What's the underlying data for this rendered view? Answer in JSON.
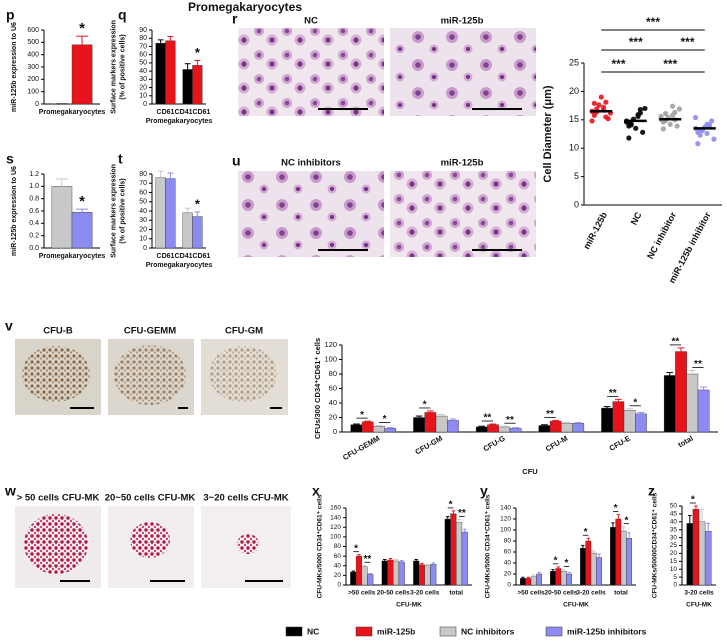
{
  "title": "Promegakaryocytes",
  "image_panels": [
    {
      "label": "r",
      "captions": [
        "NC",
        "miR-125b"
      ]
    },
    {
      "label": "u",
      "captions": [
        "NC  inhibitors",
        "miR-125b"
      ]
    },
    {
      "label": "v",
      "captions": [
        "CFU-B",
        "CFU-GEMM",
        "CFU-GM"
      ]
    },
    {
      "label": "w",
      "captions": [
        "> 50 cells CFU-MK",
        "20~50 cells CFU-MK",
        "3~20 cells CFU-MK"
      ]
    }
  ],
  "chart_data": [
    {
      "type": "bar",
      "label": "p",
      "ylabel": [
        "miR-125b expression to U6"
      ],
      "categories": [
        "Promegakaryocytes"
      ],
      "ylim": [
        0,
        600
      ],
      "yticks": [
        0,
        100,
        200,
        300,
        400,
        500,
        600
      ],
      "series": [
        {
          "name": "NC",
          "color": "#000000",
          "values": [
            1
          ],
          "errors": [
            0
          ]
        },
        {
          "name": "miR-125b",
          "color": "#e8141c",
          "values": [
            480
          ],
          "errors": [
            70
          ]
        }
      ],
      "annotations": [
        "*"
      ]
    },
    {
      "type": "bar",
      "label": "q",
      "ylabel": [
        "Surface markers expression",
        "(% of positive cells)"
      ],
      "categories": [
        "CD61",
        "CD41CD61"
      ],
      "xlabel": "Promegakaryocytes",
      "ylim": [
        0,
        90
      ],
      "yticks": [
        0,
        10,
        20,
        30,
        40,
        50,
        60,
        70,
        80,
        90
      ],
      "series": [
        {
          "name": "NC",
          "color": "#000000",
          "values": [
            74,
            42
          ],
          "errors": [
            4,
            7
          ]
        },
        {
          "name": "miR-125b",
          "color": "#e8141c",
          "values": [
            77,
            47
          ],
          "errors": [
            5,
            6
          ]
        }
      ],
      "annotations": [
        "*"
      ]
    },
    {
      "type": "bar",
      "label": "s",
      "ylabel": [
        "miR-125b expression to U6"
      ],
      "categories": [
        "Promegakaryocytes"
      ],
      "ylim": [
        0,
        1.2
      ],
      "yticks": [
        {
          "value": 0,
          "label": "0.0"
        },
        0.2,
        0.4,
        0.6,
        0.8,
        {
          "value": 1,
          "label": "1.0"
        },
        1.2
      ],
      "series": [
        {
          "name": "NC inhibitors",
          "color": "#c8c8c8",
          "values": [
            1.0
          ],
          "errors": [
            0.12
          ]
        },
        {
          "name": "miR-125b inhibitors",
          "color": "#8c8cf0",
          "values": [
            0.58
          ],
          "errors": [
            0.05
          ]
        }
      ],
      "annotations": [
        "*"
      ]
    },
    {
      "type": "bar",
      "label": "t",
      "ylabel": [
        "Surface markers expression",
        "(% of positive cells)"
      ],
      "categories": [
        "CD61",
        "CD41CD61"
      ],
      "xlabel": "Promegakaryocytes",
      "ylim": [
        0,
        80
      ],
      "yticks": [
        0,
        10,
        20,
        30,
        40,
        50,
        60,
        70,
        80
      ],
      "series": [
        {
          "name": "NC inhibitors",
          "color": "#c8c8c8",
          "values": [
            76,
            38
          ],
          "errors": [
            7,
            5
          ]
        },
        {
          "name": "miR-125b inhibitors",
          "color": "#8c8cf0",
          "values": [
            75,
            34
          ],
          "errors": [
            6,
            5
          ]
        }
      ],
      "annotations": [
        "*"
      ]
    },
    {
      "type": "scatter",
      "ylabel": [
        "Cell Diameter (μm)"
      ],
      "ylim": [
        0,
        25
      ],
      "yticks": [
        0,
        5,
        10,
        15,
        20,
        25
      ],
      "series": [
        {
          "name": "miR-125b",
          "color": "#e8141c",
          "mean": 16.5,
          "values": [
            16.5,
            17.2,
            15.8,
            18.1,
            16.9,
            15.2,
            17.6,
            16.2,
            19.0,
            14.8,
            16.7,
            17.9,
            15.5,
            16.4
          ]
        },
        {
          "name": "NC",
          "color": "#000000",
          "mean": 14.8,
          "values": [
            14.8,
            15.6,
            13.9,
            16.2,
            14.3,
            12.8,
            15.1,
            17.0,
            13.5,
            14.6,
            15.9,
            11.8,
            16.8,
            14.1
          ]
        },
        {
          "name": "NC inhibitor",
          "color": "#a0a0a0",
          "mean": 15.1,
          "values": [
            15.1,
            15.8,
            14.6,
            16.3,
            14.9,
            13.9,
            15.4,
            16.9,
            14.2,
            15.6,
            17.4,
            13.4,
            15.0,
            16.1
          ]
        },
        {
          "name": "miR-125b inhibitor",
          "color": "#8c8cf0",
          "mean": 13.5,
          "values": [
            13.5,
            14.2,
            12.8,
            13.9,
            12.3,
            14.8,
            13.1,
            11.6,
            13.7,
            15.4,
            12.6,
            10.8,
            14.1,
            13.3
          ]
        }
      ],
      "annotations": [
        "***",
        "***",
        "***",
        "***",
        "***"
      ]
    },
    {
      "type": "bar",
      "ylabel": [
        "CFUs/300 CD34⁺CD61⁺ cells"
      ],
      "categories": [
        "CFU-GEMM",
        "CFU-GM",
        "CFU-G",
        "CFU-M",
        "CFU-E",
        "total"
      ],
      "xlabel": "CFU",
      "ylim": [
        0,
        120
      ],
      "yticks": [
        0,
        20,
        40,
        60,
        80,
        100,
        120
      ],
      "series": [
        {
          "name": "NC",
          "color": "#000000",
          "values": [
            10,
            20,
            7,
            9,
            33,
            78
          ],
          "errors": [
            1,
            2,
            1,
            1,
            2,
            4
          ]
        },
        {
          "name": "miR-125b",
          "color": "#e8141c",
          "values": [
            14,
            27,
            10,
            15,
            42,
            111
          ],
          "errors": [
            1,
            2,
            1,
            1,
            3,
            5
          ]
        },
        {
          "name": "NC inhibitors",
          "color": "#c8c8c8",
          "values": [
            8,
            22,
            7,
            12,
            30,
            80
          ],
          "errors": [
            1,
            2,
            1,
            1,
            2,
            5
          ]
        },
        {
          "name": "miR-125b inhibitors",
          "color": "#8c8cf0",
          "values": [
            5,
            16,
            5,
            12,
            25,
            58
          ],
          "errors": [
            1,
            2,
            1,
            1,
            2,
            4
          ]
        }
      ],
      "annotations": [
        "*",
        "*",
        "*",
        "**",
        "**",
        "**",
        "**",
        "*",
        "**",
        "**"
      ]
    },
    {
      "type": "bar",
      "label": "x",
      "ylabel": [
        "CFU-MKs/5000 CD34⁺CD61⁺ cells"
      ],
      "categories": [
        ">50 cells",
        "20-50 cells",
        "3-20 cells",
        "total"
      ],
      "xlabel": "CFU-MK",
      "ylim": [
        0,
        160
      ],
      "yticks": [
        0,
        20,
        40,
        60,
        80,
        100,
        120,
        140,
        160
      ],
      "series": [
        {
          "name": "NC",
          "color": "#000000",
          "values": [
            27,
            50,
            50,
            137
          ],
          "errors": [
            2,
            3,
            3,
            5
          ]
        },
        {
          "name": "miR-125b",
          "color": "#e8141c",
          "values": [
            60,
            52,
            42,
            148
          ],
          "errors": [
            3,
            3,
            3,
            6
          ]
        },
        {
          "name": "NC inhibitors",
          "color": "#c8c8c8",
          "values": [
            38,
            50,
            40,
            130
          ],
          "errors": [
            3,
            3,
            3,
            6
          ]
        },
        {
          "name": "miR-125b inhibitors",
          "color": "#8c8cf0",
          "values": [
            22,
            48,
            43,
            110
          ],
          "errors": [
            2,
            3,
            3,
            6
          ]
        }
      ],
      "annotations": [
        "*",
        "**",
        "*",
        "**"
      ]
    },
    {
      "type": "bar",
      "label": "y",
      "ylabel": [
        "CFU-MKs/5000 CD34⁺CD61⁺ cells"
      ],
      "categories": [
        ">50 cells",
        "20-50 cells",
        "3-20 cells",
        "total"
      ],
      "xlabel": "CFU-MK",
      "ylim": [
        0,
        140
      ],
      "yticks": [
        0,
        20,
        40,
        60,
        80,
        100,
        120,
        140
      ],
      "series": [
        {
          "name": "NC",
          "color": "#000000",
          "values": [
            12,
            25,
            67,
            105
          ],
          "errors": [
            2,
            3,
            5,
            8
          ]
        },
        {
          "name": "miR-125b",
          "color": "#e8141c",
          "values": [
            12,
            30,
            80,
            120
          ],
          "errors": [
            2,
            3,
            5,
            8
          ]
        },
        {
          "name": "NC inhibitors",
          "color": "#c8c8c8",
          "values": [
            15,
            25,
            58,
            98
          ],
          "errors": [
            3,
            3,
            4,
            8
          ]
        },
        {
          "name": "miR-125b inhibitors",
          "color": "#8c8cf0",
          "values": [
            20,
            20,
            50,
            85
          ],
          "errors": [
            3,
            3,
            6,
            10
          ]
        }
      ],
      "annotations": [
        "*",
        "*",
        "*",
        "*",
        "*"
      ]
    },
    {
      "type": "bar",
      "label": "z",
      "ylabel": [
        "CFU-MKs/50000CD34⁺CD61⁺ cells"
      ],
      "categories": [
        "3-20 cells"
      ],
      "xlabel": "CFU-MK",
      "ylim": [
        0,
        50
      ],
      "yticks": [
        0,
        5,
        10,
        15,
        20,
        25,
        30,
        35,
        40,
        45,
        50
      ],
      "series": [
        {
          "name": "NC",
          "color": "#000000",
          "values": [
            39
          ],
          "errors": [
            5
          ]
        },
        {
          "name": "miR-125b",
          "color": "#e8141c",
          "values": [
            48
          ],
          "errors": [
            2
          ]
        },
        {
          "name": "NC inhibitors",
          "color": "#c8c8c8",
          "values": [
            40
          ],
          "errors": [
            8
          ]
        },
        {
          "name": "miR-125b inhibitors",
          "color": "#8c8cf0",
          "values": [
            34
          ],
          "errors": [
            5
          ]
        }
      ],
      "annotations": [
        "*"
      ]
    }
  ]
}
